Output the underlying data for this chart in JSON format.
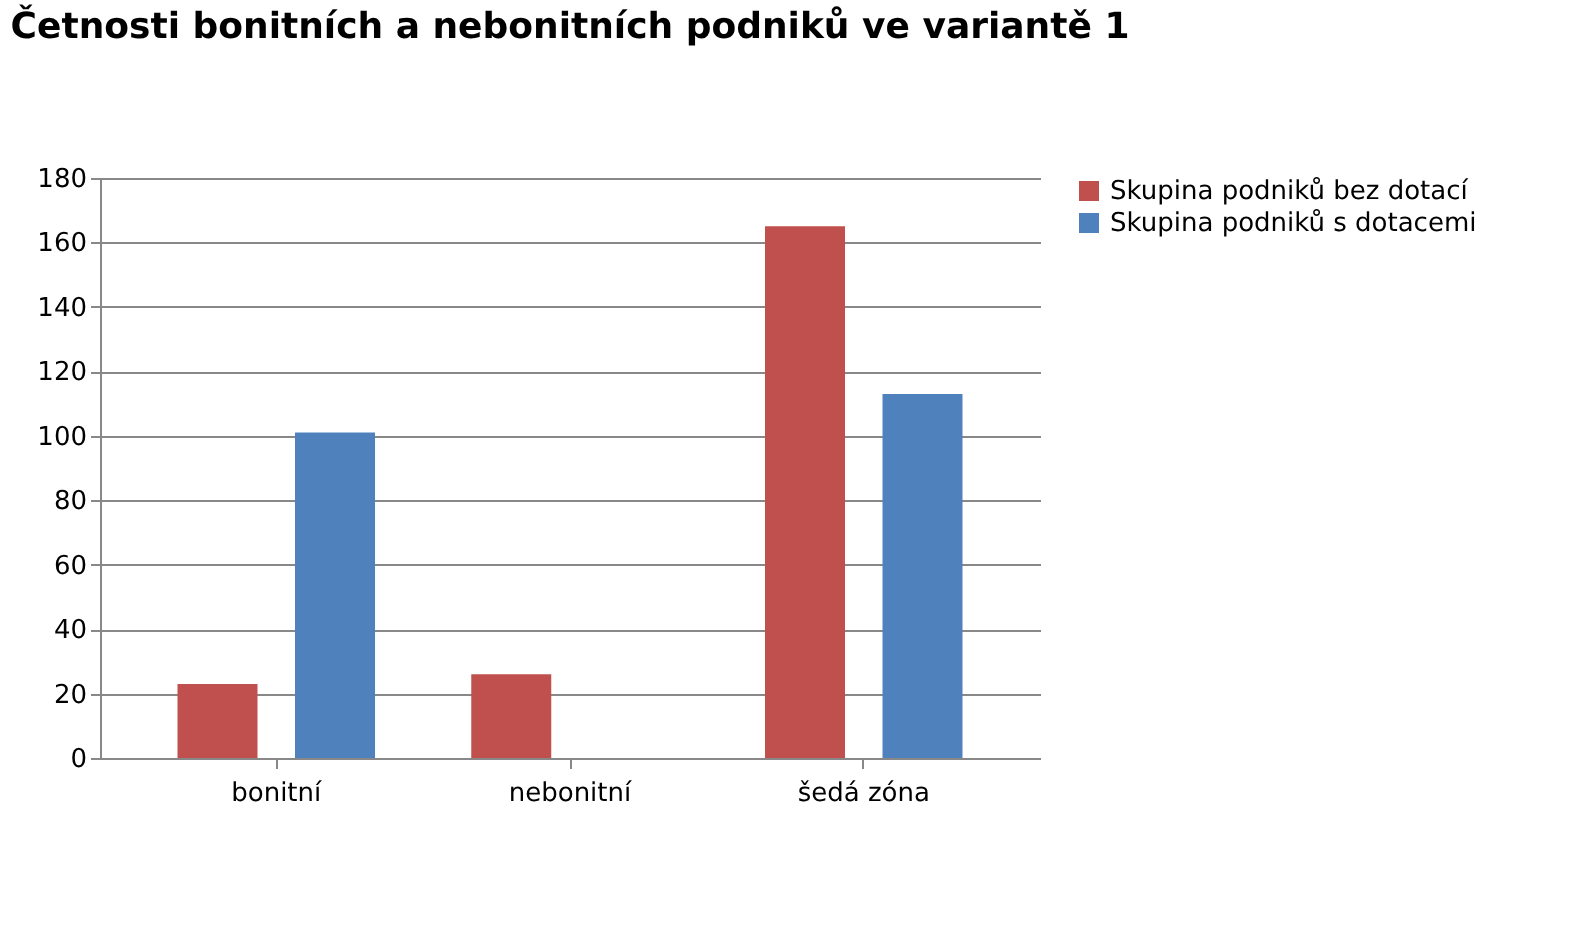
{
  "chart_data": {
    "type": "bar",
    "title": "Četnosti bonitních a nebonitních podniků ve variantě 1",
    "categories": [
      "bonitní",
      "nebonitní",
      "šedá zóna"
    ],
    "series": [
      {
        "name": "Skupina podniků bez dotací",
        "color": "#c0504d",
        "values": [
          23,
          26,
          165
        ]
      },
      {
        "name": "Skupina podniků s dotacemi",
        "color": "#4f81bd",
        "values": [
          101,
          0,
          113
        ]
      }
    ],
    "ylim": [
      0,
      180
    ],
    "yticks": [
      0,
      20,
      40,
      60,
      80,
      100,
      120,
      140,
      160,
      180
    ],
    "grid": "y",
    "legend": "right"
  }
}
